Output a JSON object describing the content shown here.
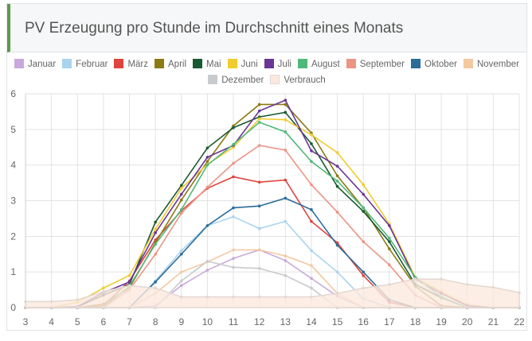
{
  "chart_data": {
    "type": "line",
    "title": "PV Erzeugung pro Stunde im Durchschnitt eines Monats",
    "x": [
      3,
      4,
      5,
      6,
      7,
      8,
      9,
      10,
      11,
      12,
      13,
      14,
      15,
      16,
      17,
      18,
      19,
      20,
      21,
      22
    ],
    "xlim": [
      3,
      22
    ],
    "ylim": [
      0,
      6
    ],
    "yticks": [
      0,
      1,
      2,
      3,
      4,
      5,
      6
    ],
    "grid": true,
    "legend_position": "top",
    "series": [
      {
        "name": "Januar",
        "color": "#c9a9dc",
        "values": [
          0,
          0,
          0,
          0,
          0,
          0.05,
          0.62,
          1.05,
          1.38,
          1.62,
          1.32,
          0.82,
          0.32,
          0,
          0,
          0,
          0,
          0,
          0,
          0
        ]
      },
      {
        "name": "Februar",
        "color": "#a9d4ee",
        "values": [
          0,
          0,
          0,
          0,
          0,
          0.75,
          1.6,
          2.3,
          2.55,
          2.22,
          2.42,
          1.6,
          1.0,
          0.25,
          0,
          0,
          0,
          0,
          0,
          0
        ]
      },
      {
        "name": "März",
        "color": "#e0443c",
        "values": [
          0,
          0,
          0,
          0.05,
          0.75,
          1.9,
          2.72,
          3.35,
          3.67,
          3.52,
          3.58,
          2.42,
          1.82,
          0.9,
          0.15,
          0,
          0,
          0,
          0,
          0
        ]
      },
      {
        "name": "April",
        "color": "#8c7a14",
        "values": [
          0,
          0,
          0,
          0.1,
          0.55,
          1.82,
          3.02,
          4.1,
          5.1,
          5.7,
          5.7,
          4.9,
          3.7,
          2.8,
          1.65,
          0.6,
          0.05,
          0,
          0,
          0
        ]
      },
      {
        "name": "Mai",
        "color": "#1a5a32",
        "values": [
          0,
          0,
          0.02,
          0.35,
          0.65,
          2.4,
          3.43,
          4.48,
          5.05,
          5.35,
          5.48,
          4.6,
          3.4,
          2.7,
          1.85,
          0.65,
          0.28,
          0,
          0,
          0
        ]
      },
      {
        "name": "Juni",
        "color": "#f0cc30",
        "values": [
          0,
          0,
          0.15,
          0.55,
          0.9,
          2.2,
          3.35,
          4.02,
          4.5,
          5.3,
          5.27,
          4.85,
          4.35,
          3.45,
          2.35,
          0.85,
          0.45,
          0.08,
          0,
          0
        ]
      },
      {
        "name": "Juli",
        "color": "#6a3596",
        "values": [
          0,
          0,
          0.03,
          0.42,
          0.72,
          2.1,
          3.18,
          4.22,
          4.55,
          5.52,
          5.82,
          4.4,
          3.97,
          3.18,
          2.3,
          0.8,
          0.4,
          0.05,
          0,
          0
        ]
      },
      {
        "name": "August",
        "color": "#52b87a",
        "values": [
          0,
          0,
          0,
          0.02,
          0.6,
          1.78,
          2.75,
          4.0,
          4.58,
          5.2,
          4.93,
          4.1,
          3.55,
          2.8,
          1.95,
          0.85,
          0.3,
          0,
          0,
          0
        ]
      },
      {
        "name": "September",
        "color": "#ec9484",
        "values": [
          0,
          0,
          0,
          0,
          0.5,
          1.5,
          2.65,
          3.38,
          4.05,
          4.55,
          4.42,
          3.45,
          2.68,
          1.85,
          1.2,
          0.35,
          0,
          0,
          0,
          0
        ]
      },
      {
        "name": "Oktober",
        "color": "#2a6c9a",
        "values": [
          0,
          0,
          0,
          0,
          0,
          0.72,
          1.5,
          2.3,
          2.8,
          2.85,
          3.07,
          2.75,
          1.75,
          1.0,
          0.22,
          0,
          0,
          0,
          0,
          0
        ]
      },
      {
        "name": "November",
        "color": "#f4c8a0",
        "values": [
          0,
          0,
          0,
          0,
          0,
          0.4,
          1.0,
          1.28,
          1.62,
          1.62,
          1.45,
          1.18,
          0.4,
          0,
          0,
          0,
          0,
          0,
          0,
          0
        ]
      },
      {
        "name": "Dezember",
        "color": "#c8cbce",
        "values": [
          0,
          0,
          0,
          0,
          0,
          0,
          0.75,
          1.3,
          1.13,
          1.1,
          0.9,
          0.55,
          0,
          0,
          0,
          0,
          0,
          0,
          0,
          0
        ]
      },
      {
        "name": "Verbrauch",
        "color": "#fbe9df",
        "border": "#e3d8d2",
        "fill": true,
        "values": [
          0.17,
          0.17,
          0.22,
          0.45,
          0.62,
          0.55,
          0.3,
          0.3,
          0.3,
          0.3,
          0.3,
          0.3,
          0.4,
          0.55,
          0.65,
          0.8,
          0.8,
          0.65,
          0.57,
          0.42
        ]
      }
    ]
  }
}
